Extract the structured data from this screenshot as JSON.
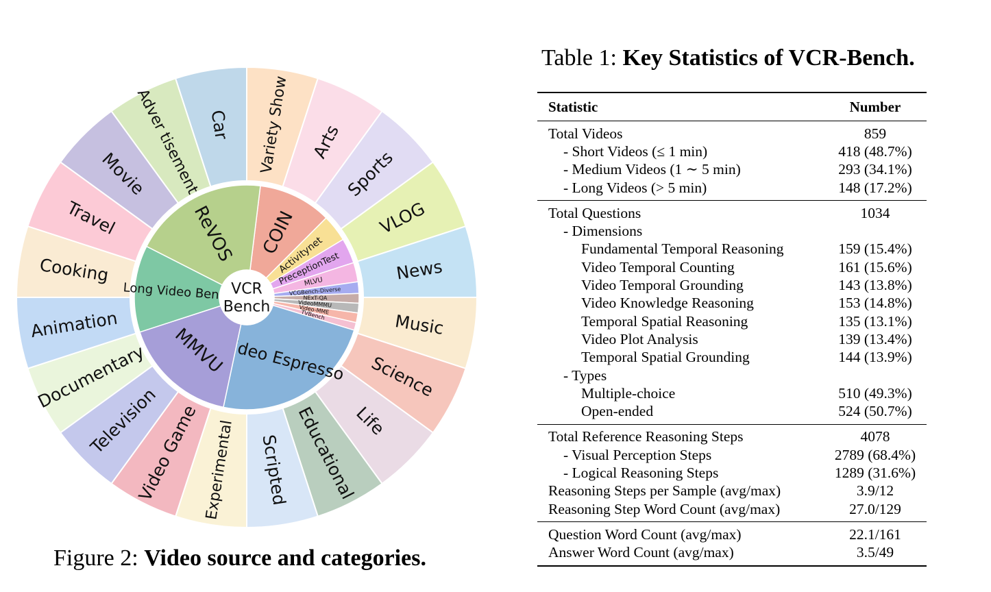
{
  "figure": {
    "caption_prefix": "Figure 2: ",
    "caption_bold": "Video source and categories.",
    "center_line1": "VCR",
    "center_line2": "Bench",
    "sources": [
      {
        "name": "COIN",
        "sweep": 38,
        "color": "#f0a899"
      },
      {
        "name": "Activitynet",
        "sweep": 14,
        "color": "#f8e095"
      },
      {
        "name": "PreceptionTest",
        "sweep": 13,
        "color": "#e2a6ee"
      },
      {
        "name": "MLVU",
        "sweep": 10,
        "color": "#f4b6e2"
      },
      {
        "name": "VCGBench-Diverse",
        "sweep": 6,
        "color": "#a6acf0"
      },
      {
        "name": "NExT-QA",
        "sweep": 5,
        "color": "#c6aca8"
      },
      {
        "name": "VideoMMMU",
        "sweep": 5,
        "color": "#b8b8b8"
      },
      {
        "name": "Video-MME",
        "sweep": 5,
        "color": "#f6b6aa"
      },
      {
        "name": "TVBench",
        "sweep": 4,
        "color": "#f4c0d2"
      },
      {
        "name": "Video Espresso",
        "sweep": 85,
        "color": "#87b3da"
      },
      {
        "name": "MMVU",
        "sweep": 60,
        "color": "#a69ed8"
      },
      {
        "name": "Long Video Bench",
        "sweep": 45,
        "color": "#7ec8a4"
      },
      {
        "name": "ReVOS",
        "sweep": 70,
        "color": "#b6d08c"
      }
    ],
    "categories": [
      {
        "name": "Variety Show",
        "color": "#fde1c5"
      },
      {
        "name": "Arts",
        "color": "#fbdde8"
      },
      {
        "name": "Sports",
        "color": "#e1dcf3"
      },
      {
        "name": "VLOG",
        "color": "#e6f1b4"
      },
      {
        "name": "News",
        "color": "#c4e2f4"
      },
      {
        "name": "Music",
        "color": "#faebd0"
      },
      {
        "name": "Science",
        "color": "#f6c6bc"
      },
      {
        "name": "Life",
        "color": "#eadbe5"
      },
      {
        "name": "Educational",
        "color": "#b9cebe"
      },
      {
        "name": "Scripted",
        "color": "#d8e6f7"
      },
      {
        "name": "Experimental",
        "color": "#faf2d6"
      },
      {
        "name": "Video Game",
        "color": "#f3b8c0"
      },
      {
        "name": "Television",
        "color": "#c4c8ec"
      },
      {
        "name": "Documentary",
        "color": "#eaf5dc"
      },
      {
        "name": "Animation",
        "color": "#c2daf5"
      },
      {
        "name": "Cooking",
        "color": "#faebd3"
      },
      {
        "name": "Travel",
        "color": "#fccad6"
      },
      {
        "name": "Movie",
        "color": "#c6c0e0"
      },
      {
        "name": "Adver tisement",
        "color": "#d8e9bf"
      },
      {
        "name": "Car",
        "color": "#bfd8ea"
      }
    ]
  },
  "table": {
    "caption_prefix": "Table 1: ",
    "caption_bold": "Key Statistics of VCR-Bench.",
    "header": {
      "statistic": "Statistic",
      "number": "Number"
    },
    "sections": [
      [
        {
          "label": "Total Videos",
          "value": "859",
          "level": 0
        },
        {
          "label": "- Short Videos (≤ 1 min)",
          "value": "418 (48.7%)",
          "level": 1
        },
        {
          "label": "- Medium Videos (1 ∼ 5 min)",
          "value": "293 (34.1%)",
          "level": 1
        },
        {
          "label": "- Long Videos (> 5 min)",
          "value": "148 (17.2%)",
          "level": 1
        }
      ],
      [
        {
          "label": "Total Questions",
          "value": "1034",
          "level": 0
        },
        {
          "label": "- Dimensions",
          "value": "",
          "level": 1
        },
        {
          "label": "Fundamental Temporal Reasoning",
          "value": "159 (15.4%)",
          "level": 2
        },
        {
          "label": "Video Temporal Counting",
          "value": "161 (15.6%)",
          "level": 2
        },
        {
          "label": "Video Temporal Grounding",
          "value": "143 (13.8%)",
          "level": 2
        },
        {
          "label": "Video Knowledge Reasoning",
          "value": "153 (14.8%)",
          "level": 2
        },
        {
          "label": "Temporal Spatial Reasoning",
          "value": "135 (13.1%)",
          "level": 2
        },
        {
          "label": "Video Plot Analysis",
          "value": "139 (13.4%)",
          "level": 2
        },
        {
          "label": "Temporal Spatial Grounding",
          "value": "144 (13.9%)",
          "level": 2
        },
        {
          "label": "- Types",
          "value": "",
          "level": 1
        },
        {
          "label": "Multiple-choice",
          "value": "510 (49.3%)",
          "level": 2
        },
        {
          "label": "Open-ended",
          "value": "524 (50.7%)",
          "level": 2
        }
      ],
      [
        {
          "label": "Total Reference Reasoning Steps",
          "value": "4078",
          "level": 0
        },
        {
          "label": "- Visual Perception Steps",
          "value": "2789 (68.4%)",
          "level": 1
        },
        {
          "label": "- Logical Reasoning Steps",
          "value": "1289 (31.6%)",
          "level": 1
        },
        {
          "label": "Reasoning Steps per Sample (avg/max)",
          "value": "3.9/12",
          "level": 0
        },
        {
          "label": "Reasoning Step Word Count (avg/max)",
          "value": "27.0/129",
          "level": 0
        }
      ],
      [
        {
          "label": "Question Word Count (avg/max)",
          "value": "22.1/161",
          "level": 0
        },
        {
          "label": "Answer Word Count (avg/max)",
          "value": "3.5/49",
          "level": 0
        }
      ]
    ]
  }
}
